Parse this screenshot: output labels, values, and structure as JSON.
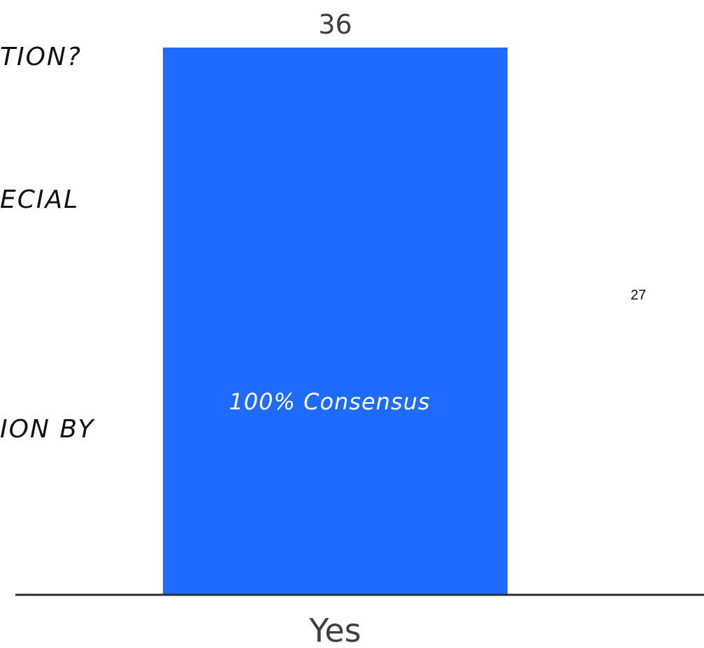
{
  "slide": {
    "text_lines": [
      "TION?",
      "ECIAL",
      "ION BY"
    ],
    "page_number": "27"
  },
  "chart_data": {
    "type": "bar",
    "categories": [
      "Yes"
    ],
    "values": [
      36
    ],
    "ylim": [
      0,
      36
    ],
    "bar_annotation": "100% Consensus",
    "bar_color": "#1e6bff",
    "axis_color": "#2b2f33",
    "grid": false
  }
}
